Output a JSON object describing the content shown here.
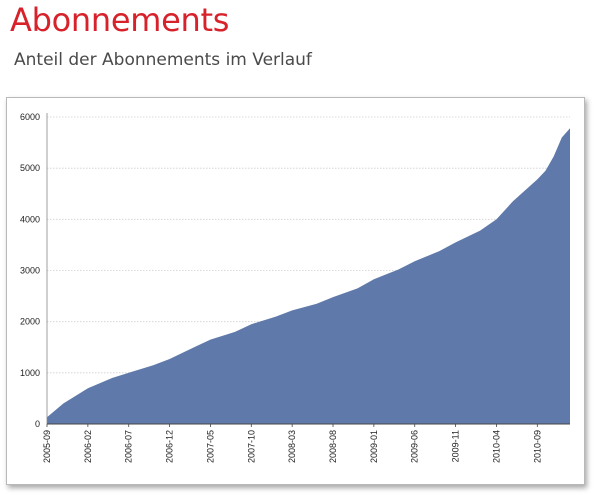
{
  "header": {
    "title": "Abonnements",
    "subtitle": "Anteil der Abonnements im Verlauf"
  },
  "colors": {
    "title": "#d7222b",
    "area_fill": "#5f7aaa",
    "grid": "#cfcfcf"
  },
  "chart_data": {
    "type": "area",
    "title": "",
    "xlabel": "",
    "ylabel": "",
    "ylim": [
      0,
      6000
    ],
    "y_ticks": [
      0,
      1000,
      2000,
      3000,
      4000,
      5000,
      6000
    ],
    "x_tick_labels": [
      "2005-09",
      "2006-02",
      "2006-07",
      "2006-12",
      "2007-05",
      "2007-10",
      "2008-03",
      "2008-08",
      "2009-01",
      "2009-06",
      "2009-11",
      "2010-04",
      "2010-09"
    ],
    "grid": "horizontal",
    "legend": "none",
    "x": [
      "2005-09",
      "2005-11",
      "2006-02",
      "2006-05",
      "2006-07",
      "2006-10",
      "2006-12",
      "2007-03",
      "2007-05",
      "2007-08",
      "2007-10",
      "2008-01",
      "2008-03",
      "2008-06",
      "2008-08",
      "2008-11",
      "2009-01",
      "2009-04",
      "2009-06",
      "2009-09",
      "2009-11",
      "2010-02",
      "2010-04",
      "2010-06",
      "2010-09",
      "2010-10",
      "2010-11",
      "2010-12",
      "2011-01"
    ],
    "series": [
      {
        "values": [
          130,
          400,
          700,
          900,
          1000,
          1150,
          1270,
          1500,
          1650,
          1800,
          1950,
          2100,
          2220,
          2350,
          2480,
          2650,
          2830,
          3020,
          3180,
          3380,
          3550,
          3780,
          4000,
          4350,
          4780,
          4950,
          5230,
          5600,
          5780
        ]
      }
    ]
  }
}
